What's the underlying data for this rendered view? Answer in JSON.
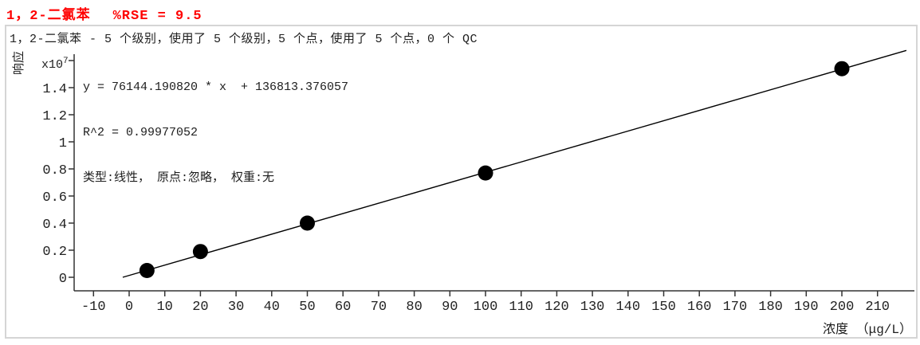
{
  "title": {
    "compound": "1，2-二氯苯",
    "rse": "%RSE = 9.5",
    "color": "#ff0000"
  },
  "panel": {
    "subtitle": "1，2-二氯苯 - 5 个级别，使用了 5 个级别，5 个点，使用了 5 个点，0 个 QC",
    "equation_line": "y = 76144.190820 * x  + 136813.376057",
    "r2_line": "R^2 = 0.99977052",
    "fit_type_line": "类型:线性， 原点:忽略， 权重:无"
  },
  "chart_data": {
    "type": "scatter",
    "title": "1，2-二氯苯  %RSE = 9.5",
    "subtitle": "1，2-二氯苯 - 5 个级别，使用了 5 个级别，5 个点，使用了 5 个点，0 个 QC",
    "xlabel": "浓度 （μg/L）",
    "ylabel": "响应",
    "y_scale": {
      "base": "x10",
      "exp": "7"
    },
    "points": {
      "x": [
        5,
        20,
        50,
        100,
        200
      ],
      "y_e7": [
        0.05,
        0.19,
        0.4,
        0.77,
        1.54
      ]
    },
    "fit": {
      "slope": 76144.19082,
      "intercept": 136813.376057,
      "r2": 0.99977052,
      "rse_percent": 9.5,
      "type": "线性",
      "origin": "忽略",
      "weight": "无"
    },
    "x_ticks": [
      -10,
      0,
      10,
      20,
      30,
      40,
      50,
      60,
      70,
      80,
      90,
      100,
      110,
      120,
      130,
      140,
      150,
      160,
      170,
      180,
      190,
      200,
      210
    ],
    "y_ticks": [
      {
        "v": 0,
        "label": "0"
      },
      {
        "v": 0.2,
        "label": "0.2"
      },
      {
        "v": 0.4,
        "label": "0.4"
      },
      {
        "v": 0.6,
        "label": "0.6"
      },
      {
        "v": 0.8,
        "label": "0.8"
      },
      {
        "v": 1,
        "label": "1"
      },
      {
        "v": 1.2,
        "label": "1.2"
      },
      {
        "v": 1.4,
        "label": "1.4"
      },
      {
        "v": 1.6,
        "label": ""
      }
    ],
    "xlim": [
      -15.5,
      220.5
    ],
    "ylim_e7": [
      -0.1,
      1.69
    ],
    "grid": false,
    "legend": false,
    "colors": {
      "points": "#000000",
      "line": "#000000",
      "axis": "#333333",
      "title": "#ff0000",
      "border": "#d5d5d5"
    }
  }
}
